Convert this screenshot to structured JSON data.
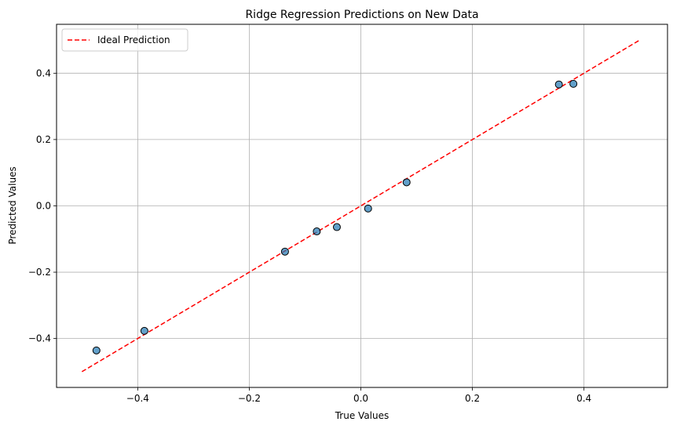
{
  "chart_data": {
    "type": "scatter",
    "title": "Ridge Regression Predictions on New Data",
    "xlabel": "True Values",
    "ylabel": "Predicted Values",
    "xlim": [
      -0.5455,
      0.5497
    ],
    "ylim": [
      -0.5475,
      0.5474
    ],
    "xticks": [
      -0.4,
      -0.2,
      0.0,
      0.2,
      0.4
    ],
    "xtick_labels": [
      "−0.4",
      "−0.2",
      "0.0",
      "0.2",
      "0.4"
    ],
    "yticks": [
      -0.4,
      -0.2,
      0.0,
      0.2,
      0.4
    ],
    "ytick_labels": [
      "−0.4",
      "−0.2",
      "0.0",
      "0.2",
      "0.4"
    ],
    "grid": true,
    "legend": {
      "position": "top-left",
      "entries": [
        "Ideal Prediction"
      ]
    },
    "points": [
      {
        "x": -0.474,
        "y": -0.436
      },
      {
        "x": -0.388,
        "y": -0.377
      },
      {
        "x": -0.136,
        "y": -0.138
      },
      {
        "x": -0.079,
        "y": -0.077
      },
      {
        "x": -0.043,
        "y": -0.064
      },
      {
        "x": 0.013,
        "y": -0.008
      },
      {
        "x": 0.082,
        "y": 0.071
      },
      {
        "x": 0.355,
        "y": 0.366
      },
      {
        "x": 0.381,
        "y": 0.368
      }
    ],
    "ideal_line": {
      "name": "Ideal Prediction",
      "x": [
        -0.5,
        0.5
      ],
      "y": [
        -0.5,
        0.5
      ]
    },
    "colors": {
      "points": "#1f77b4",
      "point_edge": "#000000",
      "ideal_line": "#ff0000",
      "grid": "#b0b0b0"
    }
  }
}
